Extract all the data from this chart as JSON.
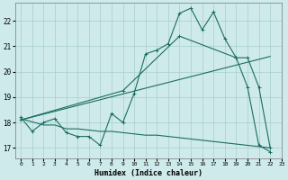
{
  "xlabel": "Humidex (Indice chaleur)",
  "xlim": [
    -0.5,
    23
  ],
  "ylim": [
    16.6,
    22.7
  ],
  "xticks": [
    0,
    1,
    2,
    3,
    4,
    5,
    6,
    7,
    8,
    9,
    10,
    11,
    12,
    13,
    14,
    15,
    16,
    17,
    18,
    19,
    20,
    21,
    22,
    23
  ],
  "yticks": [
    17,
    18,
    19,
    20,
    21,
    22
  ],
  "background_color": "#ceeaea",
  "grid_color": "#a8cece",
  "line_color": "#1a6e60",
  "line1_x": [
    0,
    1,
    2,
    3,
    4,
    5,
    6,
    7,
    8,
    9,
    10,
    11,
    12,
    13,
    14,
    15,
    16,
    17,
    18,
    19,
    20,
    21,
    22
  ],
  "line1_y": [
    18.2,
    17.65,
    18.0,
    18.15,
    17.6,
    17.45,
    17.45,
    17.1,
    18.35,
    18.0,
    19.15,
    20.7,
    20.85,
    21.1,
    22.3,
    22.5,
    21.65,
    22.35,
    21.3,
    20.55,
    19.4,
    17.1,
    16.85
  ],
  "line2_x": [
    0,
    2,
    3,
    4,
    5,
    6,
    7,
    8,
    9,
    10,
    11,
    12,
    13,
    14,
    15,
    16,
    17,
    18,
    19,
    20,
    21,
    22
  ],
  "line2_y": [
    18.15,
    17.9,
    17.9,
    17.75,
    17.75,
    17.7,
    17.65,
    17.65,
    17.6,
    17.55,
    17.5,
    17.5,
    17.45,
    17.4,
    17.35,
    17.3,
    17.25,
    17.2,
    17.15,
    17.1,
    17.05,
    17.0
  ],
  "line3_x": [
    0,
    22
  ],
  "line3_y": [
    18.1,
    20.6
  ],
  "line4_x": [
    0,
    9,
    14,
    19,
    20,
    21,
    22
  ],
  "line4_y": [
    18.1,
    19.25,
    21.4,
    20.55,
    20.55,
    19.4,
    17.0
  ]
}
